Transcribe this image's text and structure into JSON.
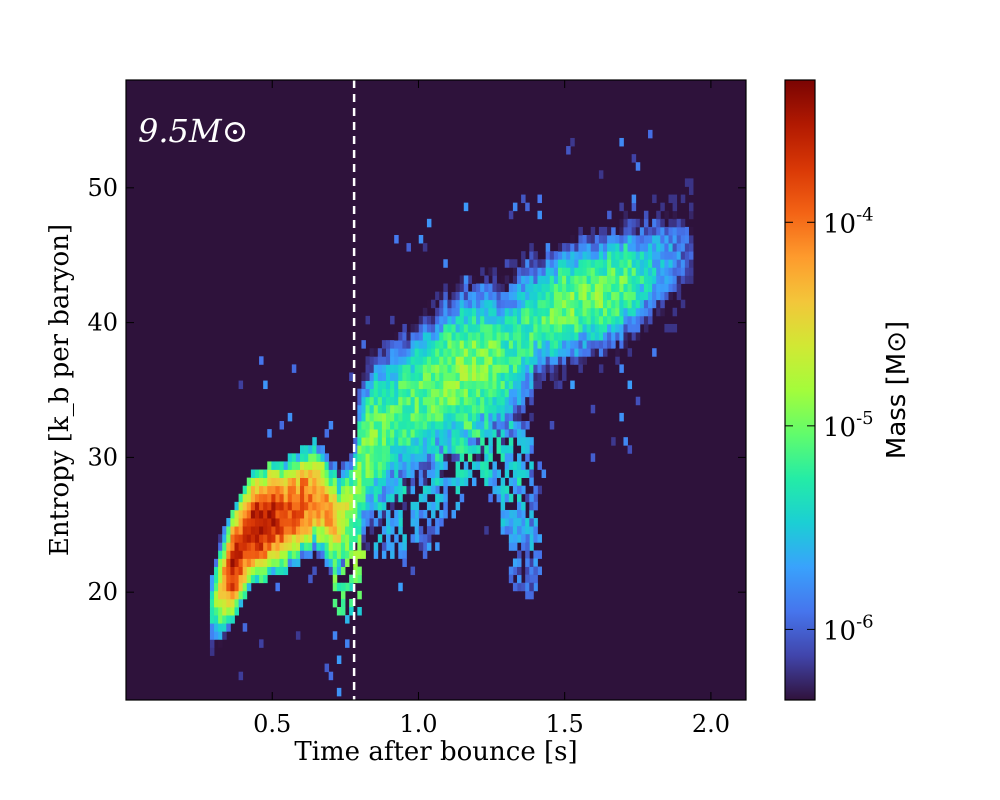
{
  "chart_data": {
    "type": "heatmap",
    "title": "",
    "annotation": "9.5M⊙",
    "xlabel": "Time after bounce [s]",
    "ylabel": "Entropy [k_b per baryon]",
    "xlim": [
      0.0,
      2.12
    ],
    "ylim": [
      12,
      58
    ],
    "x_ticks": [
      {
        "value": 0.5,
        "label": "0.5"
      },
      {
        "value": 1.0,
        "label": "1.0"
      },
      {
        "value": 1.5,
        "label": "1.5"
      },
      {
        "value": 2.0,
        "label": "2.0"
      }
    ],
    "y_ticks": [
      {
        "value": 20,
        "label": "20"
      },
      {
        "value": 30,
        "label": "30"
      },
      {
        "value": 40,
        "label": "40"
      },
      {
        "value": 50,
        "label": "50"
      }
    ],
    "vertical_line": {
      "x": 0.78,
      "style": "dashed",
      "color": "#ffffff"
    },
    "background_color": "#2e123b",
    "grid": false,
    "colorbar": {
      "label": "Mass [M⊙]",
      "scale": "log",
      "range": [
        4.5e-07,
        0.0005
      ],
      "ticks": [
        {
          "value": 1e-06,
          "label": "10-6"
        },
        {
          "value": 1e-05,
          "label": "10-5"
        },
        {
          "value": 0.0001,
          "label": "10-4"
        }
      ],
      "colormap": [
        "#30123b",
        "#4145ab",
        "#4675ed",
        "#39a2fc",
        "#1bcfd4",
        "#24eca6",
        "#61fc6c",
        "#a4fc3b",
        "#d1e834",
        "#f3c63a",
        "#fe9b2d",
        "#f36315",
        "#d93806",
        "#b11901",
        "#7a0403"
      ]
    },
    "ridges": [
      {
        "t": 0.3,
        "s": 19.0,
        "logm": -5.4
      },
      {
        "t": 0.33,
        "s": 20.5,
        "logm": -4.5
      },
      {
        "t": 0.37,
        "s": 22.0,
        "logm": -3.6
      },
      {
        "t": 0.41,
        "s": 23.8,
        "logm": -3.7
      },
      {
        "t": 0.45,
        "s": 25.0,
        "logm": -3.5
      },
      {
        "t": 0.5,
        "s": 25.4,
        "logm": -3.6
      },
      {
        "t": 0.55,
        "s": 25.8,
        "logm": -3.8
      },
      {
        "t": 0.6,
        "s": 26.5,
        "logm": -3.9
      },
      {
        "t": 0.65,
        "s": 27.2,
        "logm": -4.0
      },
      {
        "t": 0.7,
        "s": 26.0,
        "logm": -4.2
      },
      {
        "t": 0.74,
        "s": 25.0,
        "logm": -4.5
      },
      {
        "t": 0.78,
        "s": 27.0,
        "logm": -4.9
      },
      {
        "t": 0.82,
        "s": 30.0,
        "logm": -5.0
      },
      {
        "t": 0.86,
        "s": 31.5,
        "logm": -5.0
      },
      {
        "t": 0.92,
        "s": 33.0,
        "logm": -5.1
      },
      {
        "t": 1.0,
        "s": 34.0,
        "logm": -5.1
      },
      {
        "t": 1.08,
        "s": 35.5,
        "logm": -5.0
      },
      {
        "t": 1.16,
        "s": 36.5,
        "logm": -4.9
      },
      {
        "t": 1.24,
        "s": 37.0,
        "logm": -5.0
      },
      {
        "t": 1.32,
        "s": 37.5,
        "logm": -5.2
      },
      {
        "t": 1.4,
        "s": 40.0,
        "logm": -5.2
      },
      {
        "t": 1.48,
        "s": 41.0,
        "logm": -5.0
      },
      {
        "t": 1.56,
        "s": 41.8,
        "logm": -5.0
      },
      {
        "t": 1.64,
        "s": 42.2,
        "logm": -5.0
      },
      {
        "t": 1.72,
        "s": 43.0,
        "logm": -5.1
      },
      {
        "t": 1.8,
        "s": 44.0,
        "logm": -5.5
      },
      {
        "t": 1.88,
        "s": 45.0,
        "logm": -5.8
      },
      {
        "t": 1.94,
        "s": 45.5,
        "logm": -6.1
      }
    ],
    "branches": [
      {
        "t": 0.9,
        "s": 27.0,
        "logm": -5.5
      },
      {
        "t": 1.02,
        "s": 27.5,
        "logm": -5.6
      },
      {
        "t": 1.1,
        "s": 30.0,
        "logm": -5.4
      },
      {
        "t": 1.18,
        "s": 32.5,
        "logm": -5.2
      },
      {
        "t": 1.28,
        "s": 31.5,
        "logm": -5.4
      },
      {
        "t": 1.34,
        "s": 28.0,
        "logm": -5.5
      },
      {
        "t": 1.36,
        "s": 24.5,
        "logm": -5.7
      },
      {
        "t": 0.76,
        "s": 22.5,
        "logm": -5.0
      }
    ]
  }
}
